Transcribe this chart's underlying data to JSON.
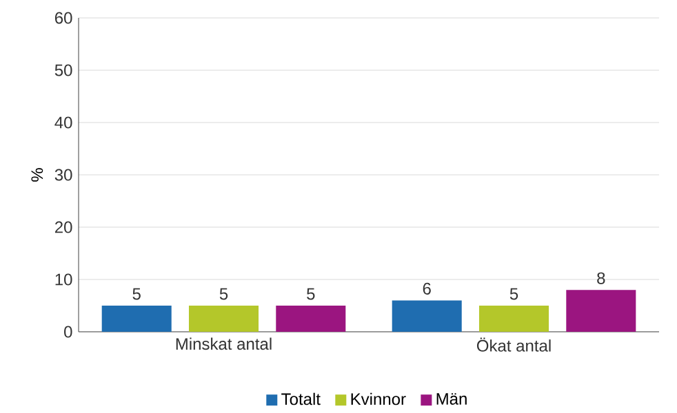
{
  "chart_data": {
    "type": "bar",
    "ylabel": "%",
    "categories": [
      "Minskat antal",
      "Ökat antal"
    ],
    "series": [
      {
        "name": "Totalt",
        "color": "#1f6db0",
        "values": [
          5,
          6
        ]
      },
      {
        "name": "Kvinnor",
        "color": "#b4c72a",
        "values": [
          5,
          5
        ]
      },
      {
        "name": "Män",
        "color": "#9b1580",
        "values": [
          5,
          8
        ]
      }
    ],
    "ylim": [
      0,
      60
    ],
    "yticks": [
      0,
      10,
      20,
      30,
      40,
      50,
      60
    ],
    "grid": "y",
    "legend": "bottom",
    "data_labels": true
  }
}
